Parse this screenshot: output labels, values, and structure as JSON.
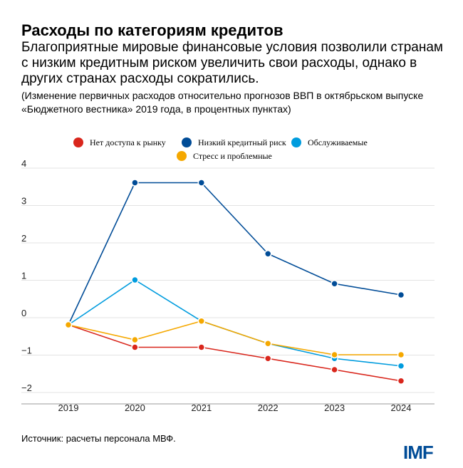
{
  "title": "Расходы по категориям кредитов",
  "subtitle": "Благоприятные мировые финансовые условия позволили странам с низким кредитным риском увеличить свои расходы, однако в других странах расходы сократились.",
  "note": "(Изменение первичных расходов относительно прогнозов ВВП в октябрьском выпуске «Бюджетного вестника» 2019 года, в процентных пунктах)",
  "source": "Источник: расчеты персонала МВФ.",
  "logo": "IMF",
  "chart_data": {
    "type": "line",
    "x": [
      "2019",
      "2020",
      "2021",
      "2022",
      "2023",
      "2024"
    ],
    "ylim": [
      -2,
      4
    ],
    "yticks": [
      "4",
      "3",
      "2",
      "1",
      "0",
      "−1",
      "−2"
    ],
    "grid": true,
    "legend_position": "top",
    "series": [
      {
        "name": "Нет доступа к рынку",
        "color": "#d9261c",
        "values": [
          0,
          -0.6,
          -0.6,
          -0.9,
          -1.2,
          -1.5
        ]
      },
      {
        "name": "Низкий кредитный риск",
        "color": "#004c97",
        "values": [
          0,
          3.8,
          3.8,
          1.9,
          1.1,
          0.8
        ]
      },
      {
        "name": "Обслуживаемые",
        "color": "#009cde",
        "values": [
          0,
          1.2,
          0.1,
          -0.5,
          -0.9,
          -1.1
        ]
      },
      {
        "name": "Стресс и проблемные",
        "color": "#f5a800",
        "values": [
          0,
          -0.4,
          0.1,
          -0.5,
          -0.8,
          -0.8
        ]
      }
    ]
  }
}
